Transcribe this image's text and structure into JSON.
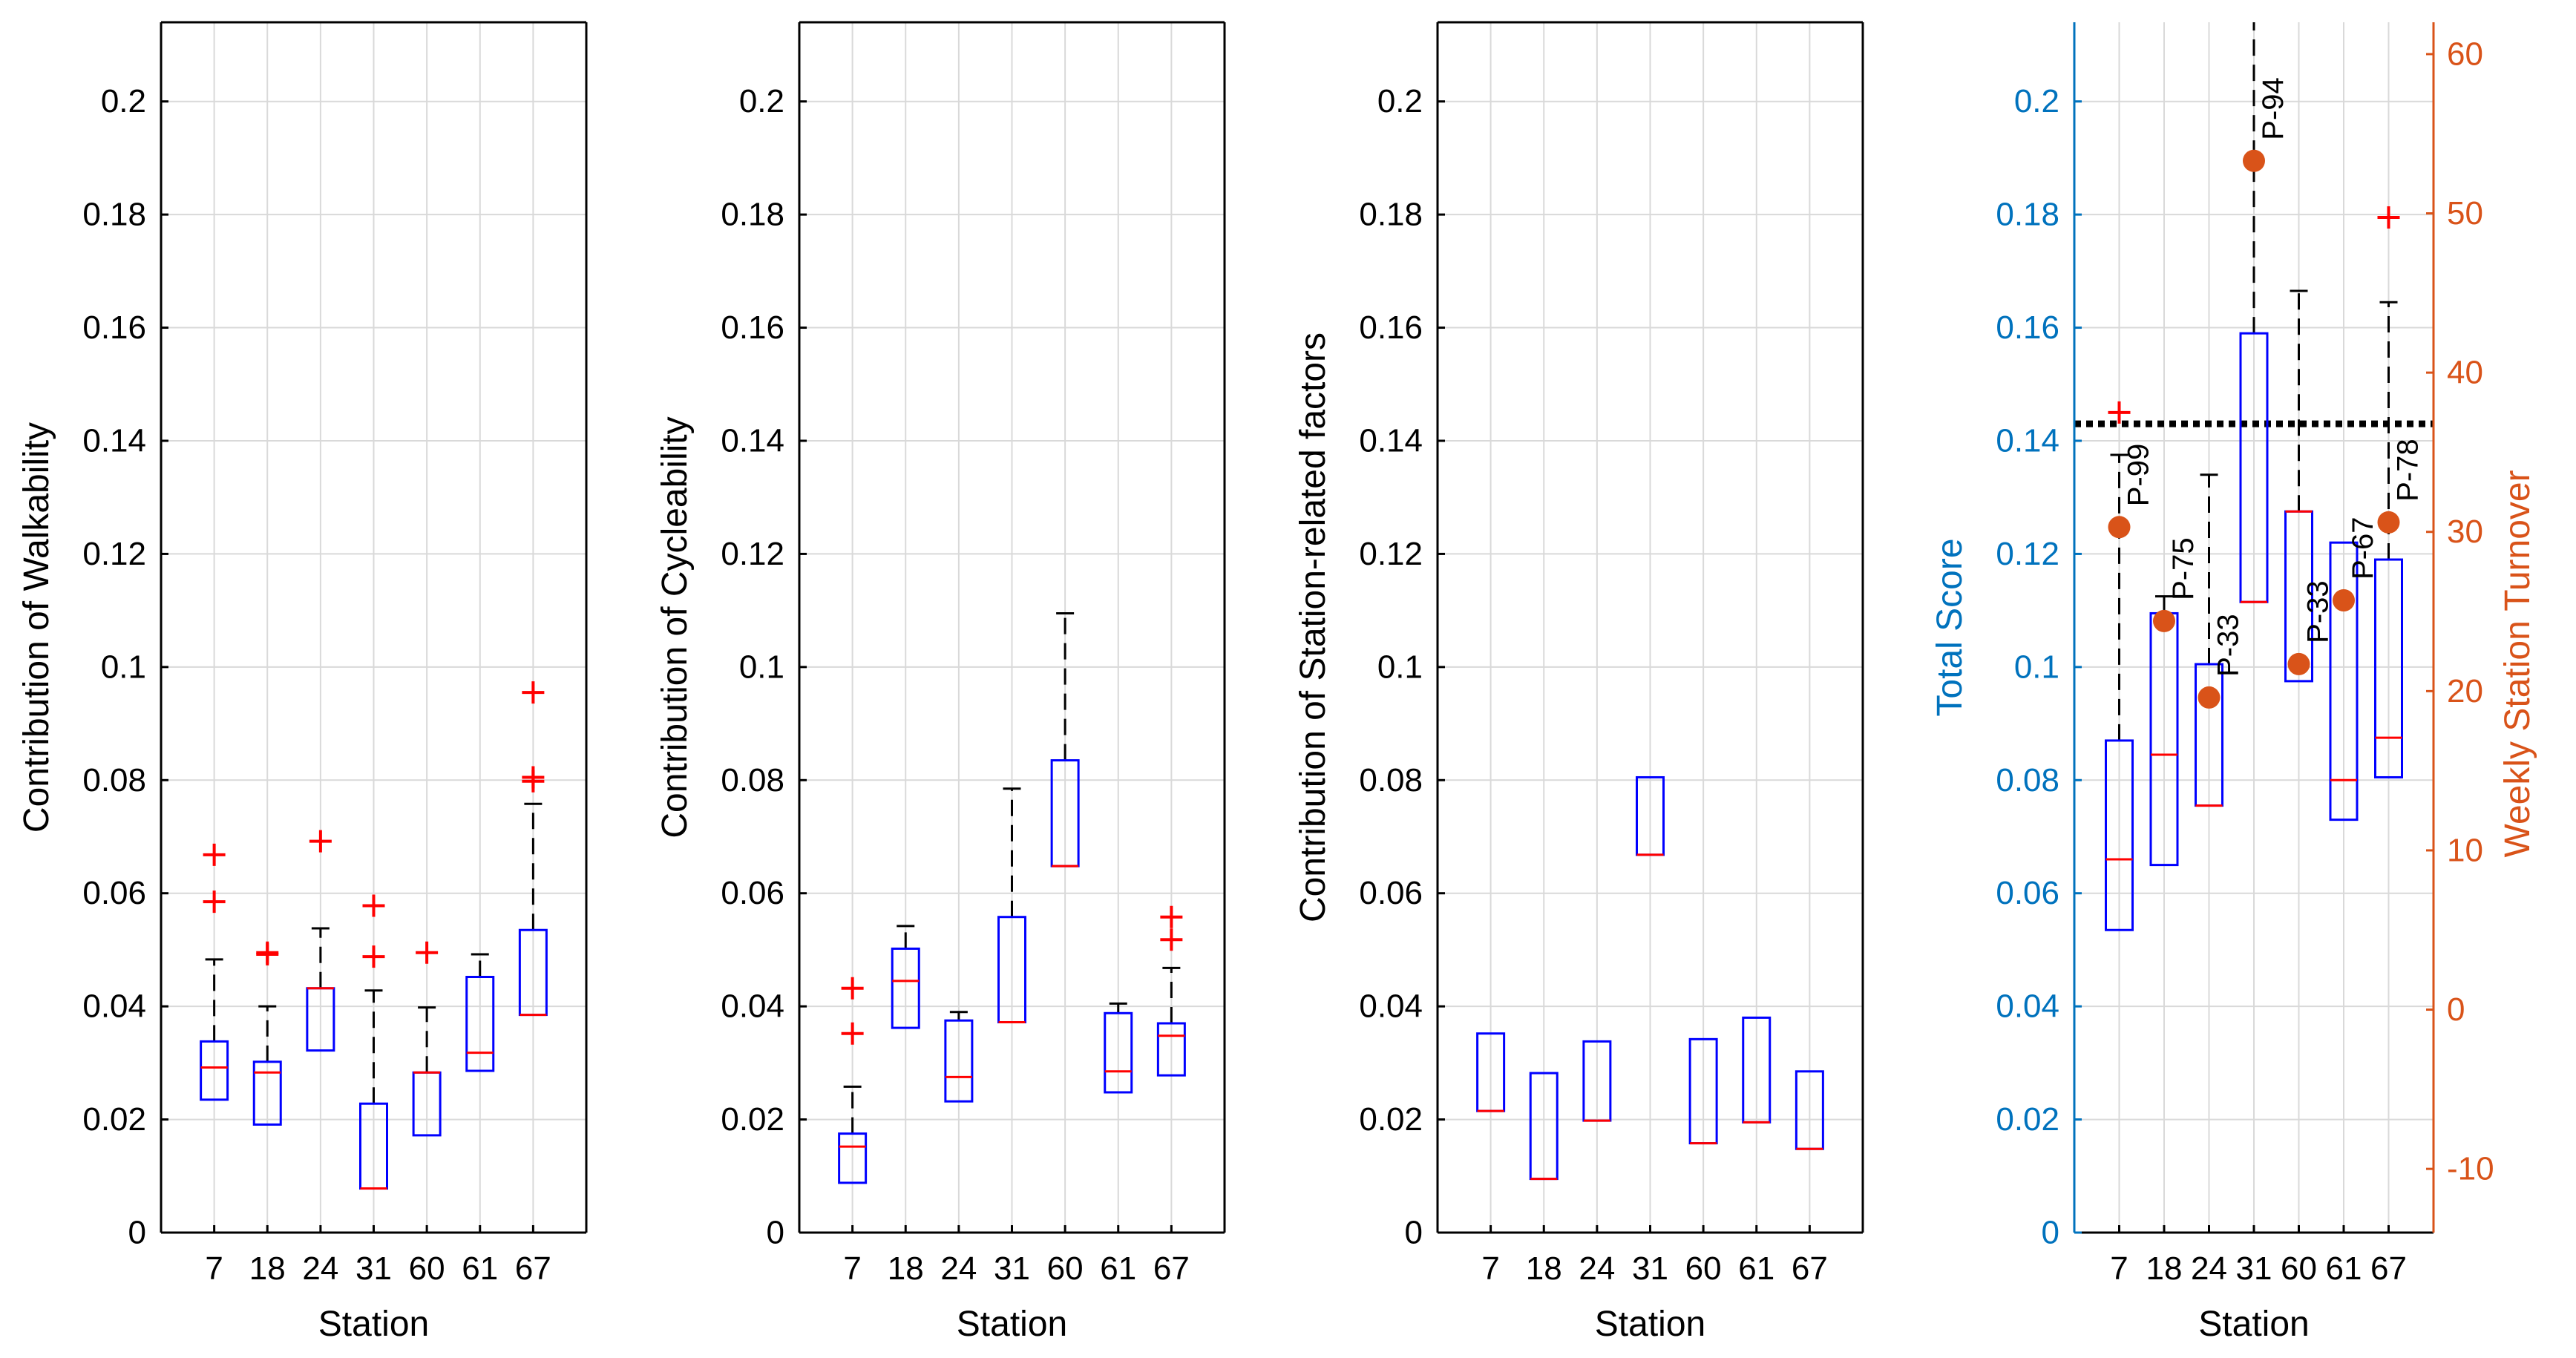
{
  "colors": {
    "box": "#0000ff",
    "median": "#ff0000",
    "outlier": "#ff0000",
    "whisker": "#000000",
    "score_axis": "#0072bd",
    "turnover_axis": "#d95319",
    "turnover_marker": "#d95319",
    "grid": "#d9d9d9",
    "threshold": "#000000"
  },
  "chart_data": [
    {
      "type": "box",
      "xlabel": "Station",
      "ylabel": "Contribution of Walkability",
      "categories": [
        "7",
        "18",
        "24",
        "31",
        "60",
        "61",
        "67"
      ],
      "ylim": [
        0,
        0.214
      ],
      "yticks": [
        0,
        0.02,
        0.04,
        0.06,
        0.08,
        0.1,
        0.12,
        0.14,
        0.16,
        0.18,
        0.2
      ],
      "ytick_labels": [
        "0",
        "0.02",
        "0.04",
        "0.06",
        "0.08",
        "0.1",
        "0.12",
        "0.14",
        "0.16",
        "0.18",
        "0.2"
      ],
      "grid": true,
      "boxes": [
        {
          "station": "7",
          "q1": 0.0235,
          "median": 0.0292,
          "q3": 0.0338,
          "whisker_low": 0.0235,
          "whisker_high": 0.0483,
          "outliers": [
            0.0585,
            0.0668
          ]
        },
        {
          "station": "18",
          "q1": 0.0191,
          "median": 0.0283,
          "q3": 0.0302,
          "whisker_low": 0.0191,
          "whisker_high": 0.04,
          "outliers": [
            0.0492,
            0.0495
          ]
        },
        {
          "station": "24",
          "q1": 0.0322,
          "median": 0.0432,
          "q3": 0.0432,
          "whisker_low": 0.0322,
          "whisker_high": 0.0538,
          "outliers": [
            0.0692
          ]
        },
        {
          "station": "31",
          "q1": 0.0078,
          "median": 0.0078,
          "q3": 0.0228,
          "whisker_low": 0.0078,
          "whisker_high": 0.0428,
          "outliers": [
            0.0488,
            0.0578
          ]
        },
        {
          "station": "60",
          "q1": 0.0172,
          "median": 0.0283,
          "q3": 0.0283,
          "whisker_low": 0.0172,
          "whisker_high": 0.0398,
          "outliers": [
            0.0495
          ]
        },
        {
          "station": "61",
          "q1": 0.0286,
          "median": 0.0318,
          "q3": 0.0452,
          "whisker_low": 0.0286,
          "whisker_high": 0.0492,
          "outliers": []
        },
        {
          "station": "67",
          "q1": 0.0385,
          "median": 0.0385,
          "q3": 0.0535,
          "whisker_low": 0.0385,
          "whisker_high": 0.0758,
          "outliers": [
            0.0798,
            0.0805,
            0.0955
          ]
        }
      ]
    },
    {
      "type": "box",
      "xlabel": "Station",
      "ylabel": "Contribution of Cycleability",
      "categories": [
        "7",
        "18",
        "24",
        "31",
        "60",
        "61",
        "67"
      ],
      "ylim": [
        0,
        0.214
      ],
      "yticks": [
        0,
        0.02,
        0.04,
        0.06,
        0.08,
        0.1,
        0.12,
        0.14,
        0.16,
        0.18,
        0.2
      ],
      "ytick_labels": [
        "0",
        "0.02",
        "0.04",
        "0.06",
        "0.08",
        "0.1",
        "0.12",
        "0.14",
        "0.16",
        "0.18",
        "0.2"
      ],
      "grid": true,
      "boxes": [
        {
          "station": "7",
          "q1": 0.0088,
          "median": 0.0152,
          "q3": 0.0175,
          "whisker_low": 0.0088,
          "whisker_high": 0.0258,
          "outliers": [
            0.0352,
            0.0432
          ]
        },
        {
          "station": "18",
          "q1": 0.0362,
          "median": 0.0445,
          "q3": 0.0502,
          "whisker_low": 0.0362,
          "whisker_high": 0.0542,
          "outliers": []
        },
        {
          "station": "24",
          "q1": 0.0232,
          "median": 0.0275,
          "q3": 0.0375,
          "whisker_low": 0.0232,
          "whisker_high": 0.039,
          "outliers": []
        },
        {
          "station": "31",
          "q1": 0.0372,
          "median": 0.0372,
          "q3": 0.0558,
          "whisker_low": 0.0372,
          "whisker_high": 0.0785,
          "outliers": []
        },
        {
          "station": "60",
          "q1": 0.0648,
          "median": 0.0648,
          "q3": 0.0835,
          "whisker_low": 0.0648,
          "whisker_high": 0.1095,
          "outliers": []
        },
        {
          "station": "61",
          "q1": 0.0248,
          "median": 0.0285,
          "q3": 0.0388,
          "whisker_low": 0.0248,
          "whisker_high": 0.0405,
          "outliers": []
        },
        {
          "station": "67",
          "q1": 0.0278,
          "median": 0.0348,
          "q3": 0.037,
          "whisker_low": 0.0278,
          "whisker_high": 0.0468,
          "outliers": [
            0.0518,
            0.0558
          ]
        }
      ]
    },
    {
      "type": "box",
      "xlabel": "Station",
      "ylabel": "Contribution of Station-related factors",
      "categories": [
        "7",
        "18",
        "24",
        "31",
        "60",
        "61",
        "67"
      ],
      "ylim": [
        0,
        0.214
      ],
      "yticks": [
        0,
        0.02,
        0.04,
        0.06,
        0.08,
        0.1,
        0.12,
        0.14,
        0.16,
        0.18,
        0.2
      ],
      "ytick_labels": [
        "0",
        "0.02",
        "0.04",
        "0.06",
        "0.08",
        "0.1",
        "0.12",
        "0.14",
        "0.16",
        "0.18",
        "0.2"
      ],
      "grid": true,
      "boxes": [
        {
          "station": "7",
          "q1": 0.0215,
          "median": 0.0215,
          "q3": 0.0352,
          "whisker_low": 0.0215,
          "whisker_high": 0.0352,
          "outliers": []
        },
        {
          "station": "18",
          "q1": 0.0095,
          "median": 0.0095,
          "q3": 0.0282,
          "whisker_low": 0.0095,
          "whisker_high": 0.0282,
          "outliers": []
        },
        {
          "station": "24",
          "q1": 0.0198,
          "median": 0.0198,
          "q3": 0.0338,
          "whisker_low": 0.0198,
          "whisker_high": 0.0338,
          "outliers": []
        },
        {
          "station": "31",
          "q1": 0.0668,
          "median": 0.0668,
          "q3": 0.0805,
          "whisker_low": 0.0668,
          "whisker_high": 0.0805,
          "outliers": []
        },
        {
          "station": "60",
          "q1": 0.0158,
          "median": 0.0158,
          "q3": 0.0342,
          "whisker_low": 0.0158,
          "whisker_high": 0.0342,
          "outliers": []
        },
        {
          "station": "61",
          "q1": 0.0195,
          "median": 0.0195,
          "q3": 0.038,
          "whisker_low": 0.0195,
          "whisker_high": 0.038,
          "outliers": []
        },
        {
          "station": "67",
          "q1": 0.0148,
          "median": 0.0148,
          "q3": 0.0285,
          "whisker_low": 0.0148,
          "whisker_high": 0.0285,
          "outliers": []
        }
      ]
    },
    {
      "type": "box",
      "xlabel": "Station",
      "ylabel": "Total Score",
      "y2label": "Weekly Station Turnover",
      "categories": [
        "7",
        "18",
        "24",
        "31",
        "60",
        "61",
        "67"
      ],
      "ylim": [
        0,
        0.214
      ],
      "yticks": [
        0,
        0.02,
        0.04,
        0.06,
        0.08,
        0.1,
        0.12,
        0.14,
        0.16,
        0.18,
        0.2
      ],
      "ytick_labels": [
        "0",
        "0.02",
        "0.04",
        "0.06",
        "0.08",
        "0.1",
        "0.12",
        "0.14",
        "0.16",
        "0.18",
        "0.2"
      ],
      "y2lim": [
        -14,
        62
      ],
      "y2ticks": [
        -10,
        0,
        10,
        20,
        30,
        40,
        50,
        60
      ],
      "y2tick_labels": [
        "-10",
        "0",
        "10",
        "20",
        "30",
        "40",
        "50",
        "60"
      ],
      "grid": true,
      "threshold_line": {
        "y": 0.143,
        "style": "dotted"
      },
      "boxes": [
        {
          "station": "7",
          "q1": 0.0535,
          "median": 0.066,
          "q3": 0.087,
          "whisker_low": 0.0535,
          "whisker_high": 0.1375,
          "outliers": [
            0.145
          ]
        },
        {
          "station": "18",
          "q1": 0.065,
          "median": 0.0845,
          "q3": 0.1095,
          "whisker_low": 0.065,
          "whisker_high": 0.1125,
          "outliers": []
        },
        {
          "station": "24",
          "q1": 0.0755,
          "median": 0.0755,
          "q3": 0.1005,
          "whisker_low": 0.0755,
          "whisker_high": 0.134,
          "outliers": []
        },
        {
          "station": "31",
          "q1": 0.1115,
          "median": 0.1115,
          "q3": 0.159,
          "whisker_low": 0.1115,
          "whisker_high": 0.214,
          "outliers": []
        },
        {
          "station": "60",
          "q1": 0.0975,
          "median": 0.1275,
          "q3": 0.1275,
          "whisker_low": 0.0975,
          "whisker_high": 0.1665,
          "outliers": []
        },
        {
          "station": "61",
          "q1": 0.073,
          "median": 0.08,
          "q3": 0.122,
          "whisker_low": 0.073,
          "whisker_high": 0.122,
          "outliers": []
        },
        {
          "station": "67",
          "q1": 0.0805,
          "median": 0.0875,
          "q3": 0.119,
          "whisker_low": 0.0805,
          "whisker_high": 0.1645,
          "outliers": [
            0.1795
          ]
        }
      ],
      "turnover_points": [
        {
          "station": "7",
          "value": 30.3,
          "label": "P-99"
        },
        {
          "station": "18",
          "value": 24.4,
          "label": "P-75"
        },
        {
          "station": "24",
          "value": 19.6,
          "label": "P-33"
        },
        {
          "station": "31",
          "value": 53.3,
          "label": "P-94"
        },
        {
          "station": "60",
          "value": 21.7,
          "label": "P-33"
        },
        {
          "station": "61",
          "value": 25.7,
          "label": "P-67"
        },
        {
          "station": "67",
          "value": 30.6,
          "label": "P-78"
        }
      ]
    }
  ]
}
